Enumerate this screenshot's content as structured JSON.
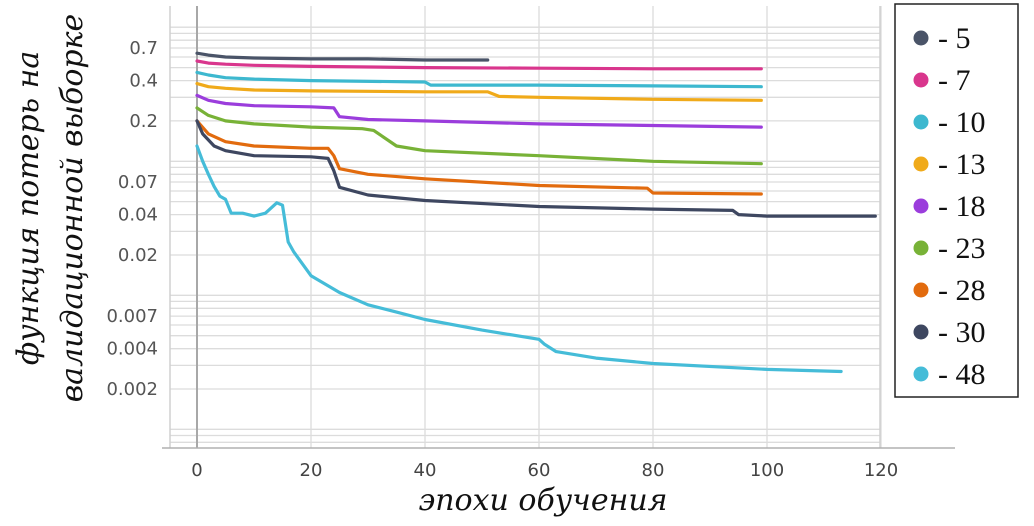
{
  "chart_data": {
    "type": "line",
    "xlabel": "эпохи обучения",
    "ylabel_lines": [
      "функция потерь на",
      "валидационной выборке"
    ],
    "x_ticks": [
      0,
      20,
      40,
      60,
      80,
      100,
      120
    ],
    "xlim": [
      -5,
      133
    ],
    "y_scale": "log",
    "y_ticks": [
      0.002,
      0.004,
      0.007,
      0.02,
      0.04,
      0.07,
      0.2,
      0.4,
      0.7
    ],
    "ylim": [
      0.0006,
      1.3
    ],
    "legend_position": "right",
    "series": [
      {
        "name": "- 5",
        "color": "#4a5468",
        "x": [
          0,
          2,
          5,
          10,
          20,
          30,
          40,
          51
        ],
        "y": [
          0.64,
          0.62,
          0.6,
          0.59,
          0.58,
          0.58,
          0.57,
          0.57
        ]
      },
      {
        "name": "- 7",
        "color": "#d9368d",
        "x": [
          0,
          2,
          5,
          10,
          20,
          40,
          60,
          80,
          99
        ],
        "y": [
          0.56,
          0.54,
          0.53,
          0.52,
          0.51,
          0.5,
          0.495,
          0.49,
          0.49
        ]
      },
      {
        "name": "- 10",
        "color": "#3db8cf",
        "x": [
          0,
          2,
          5,
          10,
          20,
          40,
          41,
          60,
          80,
          99
        ],
        "y": [
          0.46,
          0.44,
          0.42,
          0.41,
          0.4,
          0.39,
          0.37,
          0.37,
          0.365,
          0.36
        ]
      },
      {
        "name": "- 13",
        "color": "#f0aa1a",
        "x": [
          0,
          2,
          5,
          10,
          20,
          40,
          51,
          53,
          60,
          80,
          99
        ],
        "y": [
          0.38,
          0.36,
          0.35,
          0.34,
          0.335,
          0.33,
          0.33,
          0.305,
          0.3,
          0.29,
          0.285
        ]
      },
      {
        "name": "- 18",
        "color": "#9b3ddc",
        "x": [
          0,
          2,
          5,
          10,
          20,
          24,
          25,
          30,
          40,
          60,
          80,
          99
        ],
        "y": [
          0.31,
          0.285,
          0.27,
          0.26,
          0.255,
          0.25,
          0.215,
          0.205,
          0.2,
          0.19,
          0.185,
          0.18
        ]
      },
      {
        "name": "- 23",
        "color": "#78b237",
        "x": [
          0,
          2,
          5,
          10,
          20,
          29,
          31,
          35,
          40,
          60,
          80,
          99
        ],
        "y": [
          0.25,
          0.22,
          0.2,
          0.19,
          0.18,
          0.175,
          0.17,
          0.13,
          0.12,
          0.11,
          0.1,
          0.096
        ]
      },
      {
        "name": "- 28",
        "color": "#e26b0e",
        "x": [
          0,
          2,
          5,
          10,
          20,
          23,
          24,
          25,
          30,
          40,
          60,
          79,
          80,
          99
        ],
        "y": [
          0.2,
          0.16,
          0.14,
          0.13,
          0.125,
          0.125,
          0.11,
          0.088,
          0.08,
          0.074,
          0.066,
          0.063,
          0.058,
          0.057
        ]
      },
      {
        "name": "- 30",
        "color": "#3e4760",
        "x": [
          0,
          1,
          3,
          5,
          10,
          20,
          23,
          24,
          25,
          30,
          40,
          60,
          80,
          94,
          95,
          100,
          119
        ],
        "y": [
          0.2,
          0.16,
          0.13,
          0.12,
          0.11,
          0.108,
          0.105,
          0.085,
          0.064,
          0.056,
          0.051,
          0.046,
          0.044,
          0.043,
          0.04,
          0.039,
          0.039
        ]
      },
      {
        "name": "- 48",
        "color": "#45bcd8",
        "x": [
          0,
          1,
          2,
          3,
          4,
          5,
          6,
          8,
          10,
          12,
          14,
          15,
          16,
          17,
          20,
          25,
          30,
          35,
          40,
          50,
          60,
          61,
          63,
          70,
          80,
          100,
          113
        ],
        "y": [
          0.13,
          0.1,
          0.08,
          0.065,
          0.055,
          0.052,
          0.041,
          0.041,
          0.039,
          0.041,
          0.049,
          0.047,
          0.025,
          0.021,
          0.014,
          0.0105,
          0.0085,
          0.0075,
          0.0066,
          0.0055,
          0.0047,
          0.0043,
          0.0038,
          0.0034,
          0.0031,
          0.0028,
          0.0027
        ]
      }
    ]
  }
}
